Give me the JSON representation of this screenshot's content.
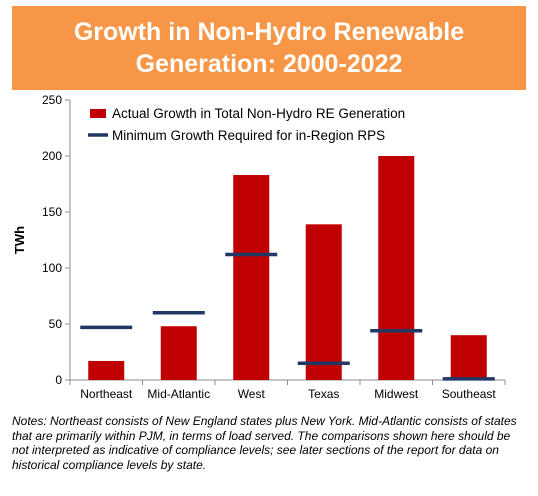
{
  "title": {
    "line1": "Growth in Non-Hydro Renewable",
    "line2": "Generation: 2000-2022"
  },
  "notes": "Notes: Northeast consists of New England states plus New York. Mid-Atlantic consists of states that are primarily within PJM, in terms of load served. The comparisons shown here should be not interpreted as indicative of compliance levels; see later sections of the report for data on historical compliance levels by state.",
  "chart_data": {
    "type": "bar",
    "title": "Growth in Non-Hydro Renewable Generation: 2000-2022",
    "xlabel": "",
    "ylabel": "TWh",
    "ylim": [
      0,
      250
    ],
    "yticks": [
      "0",
      "50",
      "100",
      "150",
      "200",
      "250"
    ],
    "grid": false,
    "legend_position": "top-right",
    "categories": [
      "Northeast",
      "Mid-Atlantic",
      "West",
      "Texas",
      "Midwest",
      "Southeast"
    ],
    "series": [
      {
        "name": "Actual Growth in Total Non-Hydro RE Generation",
        "kind": "bar",
        "color": "#c00000",
        "values": [
          17,
          48,
          183,
          139,
          200,
          40
        ]
      },
      {
        "name": "Minimum Growth Required for in-Region RPS",
        "kind": "marker",
        "color": "#1f3864",
        "values": [
          47,
          60,
          112,
          15,
          44,
          1
        ]
      }
    ]
  }
}
